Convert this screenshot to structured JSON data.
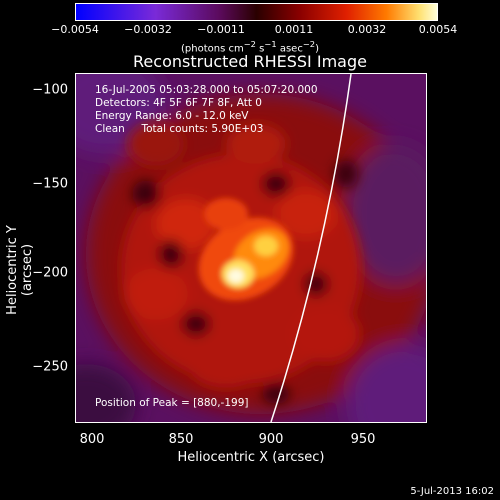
{
  "colorbar": {
    "ticks": [
      "−0.0054",
      "−0.0032",
      "−0.0011",
      "0.0011",
      "0.0032",
      "0.0054"
    ],
    "unit_main": "(photons cm",
    "unit_exp1": "−2",
    "unit_mid": " s",
    "unit_exp2": "−1",
    "unit_mid2": " asec",
    "unit_exp3": "−2",
    "unit_end": ")"
  },
  "title": "Reconstructed RHESSI Image",
  "info": {
    "line1": "16-Jul-2005 05:03:28.000 to 05:07:20.000",
    "line2": "Detectors: 4F 5F 6F 7F 8F, Att 0",
    "line3": "Energy Range: 6.0 - 12.0 keV",
    "line4": "Clean     Total counts: 5.90E+03",
    "peak": "Position of Peak = [880,-199]"
  },
  "axes": {
    "xlabel": "Heliocentric X (arcsec)",
    "ylabel": "Heliocentric Y (arcsec)",
    "xticks": [
      "800",
      "850",
      "900",
      "950"
    ],
    "yticks": [
      "−100",
      "−150",
      "−200",
      "−250"
    ]
  },
  "footer": "5-Jul-2013 16:02"
}
